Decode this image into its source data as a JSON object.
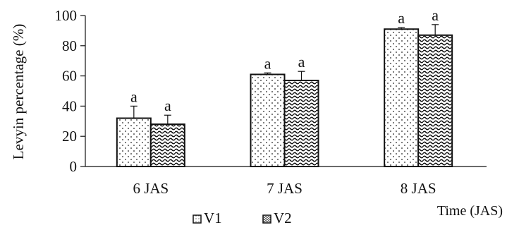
{
  "chart_data": {
    "type": "bar",
    "title": "",
    "xlabel": "Time (JAS)",
    "ylabel": "Levyin percentage (%)",
    "categories": [
      "6 JAS",
      "7 JAS",
      "8 JAS"
    ],
    "ylim": [
      0,
      100
    ],
    "yticks": [
      0,
      20,
      40,
      60,
      80,
      100
    ],
    "grid": false,
    "legend_position": "bottom",
    "series": [
      {
        "name": "V1",
        "values": [
          32,
          61,
          91
        ],
        "errors": [
          8,
          1,
          1
        ],
        "labels": [
          "a",
          "a",
          "a"
        ],
        "pattern": "dots"
      },
      {
        "name": "V2",
        "values": [
          28,
          57,
          87
        ],
        "errors": [
          6,
          6,
          7
        ],
        "labels": [
          "a",
          "a",
          "a"
        ],
        "pattern": "waves"
      }
    ]
  }
}
